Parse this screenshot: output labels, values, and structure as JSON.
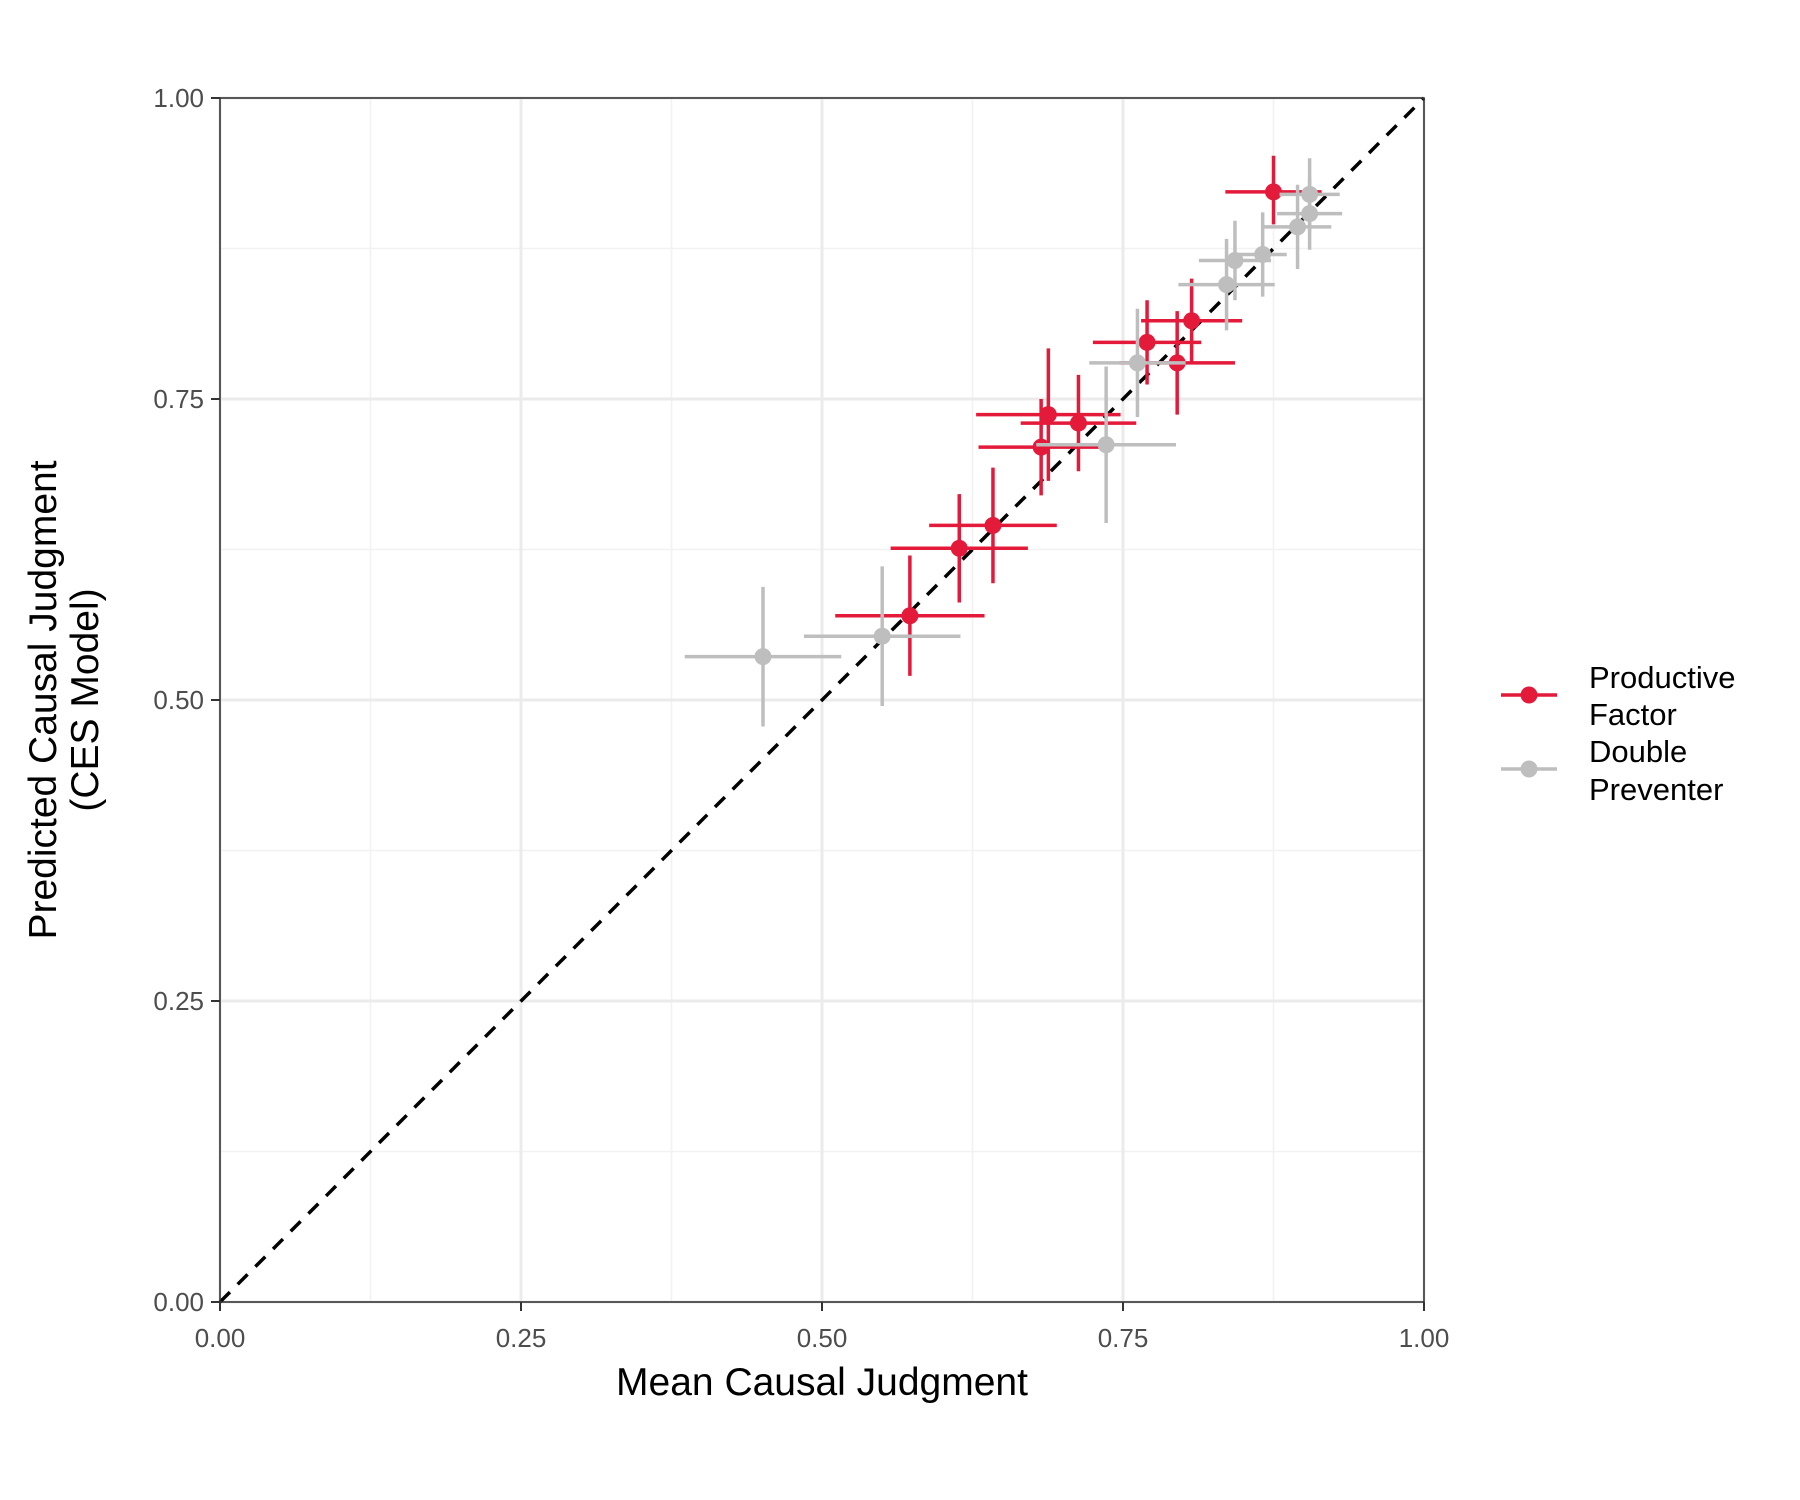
{
  "chart_data": {
    "type": "scatter",
    "title": "",
    "xlabel": "Mean Causal Judgment",
    "ylabel_lines": [
      "Predicted Causal Judgment",
      "(CES Model)"
    ],
    "xlim": [
      0,
      1
    ],
    "ylim": [
      0,
      1
    ],
    "x_ticks": [
      "0.00",
      "0.25",
      "0.50",
      "0.75",
      "1.00"
    ],
    "y_ticks": [
      "0.00",
      "0.25",
      "0.50",
      "0.75",
      "1.00"
    ],
    "grid": true,
    "reference_line": "y = x (dashed)",
    "legend_position": "right",
    "series": [
      {
        "name": "Productive Factor",
        "legend_lines": [
          "Productive",
          "Factor"
        ],
        "color": "#E41A3A",
        "points": [
          {
            "x": 0.875,
            "y": 0.922,
            "xerr": [
              0.04,
              0.04
            ],
            "yerr": [
              0.027,
              0.03
            ]
          },
          {
            "x": 0.807,
            "y": 0.815,
            "xerr": [
              0.042,
              0.042
            ],
            "yerr": [
              0.035,
              0.035
            ]
          },
          {
            "x": 0.77,
            "y": 0.797,
            "xerr": [
              0.045,
              0.045
            ],
            "yerr": [
              0.035,
              0.035
            ]
          },
          {
            "x": 0.795,
            "y": 0.78,
            "xerr": [
              0.048,
              0.048
            ],
            "yerr": [
              0.043,
              0.043
            ]
          },
          {
            "x": 0.688,
            "y": 0.737,
            "xerr": [
              0.06,
              0.06
            ],
            "yerr": [
              0.055,
              0.055
            ]
          },
          {
            "x": 0.713,
            "y": 0.73,
            "xerr": [
              0.048,
              0.048
            ],
            "yerr": [
              0.04,
              0.04
            ]
          },
          {
            "x": 0.682,
            "y": 0.71,
            "xerr": [
              0.052,
              0.052
            ],
            "yerr": [
              0.04,
              0.04
            ]
          },
          {
            "x": 0.642,
            "y": 0.645,
            "xerr": [
              0.053,
              0.053
            ],
            "yerr": [
              0.048,
              0.048
            ]
          },
          {
            "x": 0.614,
            "y": 0.626,
            "xerr": [
              0.057,
              0.057
            ],
            "yerr": [
              0.045,
              0.045
            ]
          },
          {
            "x": 0.573,
            "y": 0.57,
            "xerr": [
              0.062,
              0.062
            ],
            "yerr": [
              0.05,
              0.05
            ]
          }
        ]
      },
      {
        "name": "Double Preventer",
        "legend_lines": [
          "Double",
          "Preventer"
        ],
        "color": "#BEBEBE",
        "points": [
          {
            "x": 0.905,
            "y": 0.92,
            "xerr": [
              0.025,
              0.025
            ],
            "yerr": [
              0.03,
              0.03
            ]
          },
          {
            "x": 0.905,
            "y": 0.904,
            "xerr": [
              0.027,
              0.027
            ],
            "yerr": [
              0.03,
              0.03
            ]
          },
          {
            "x": 0.895,
            "y": 0.893,
            "xerr": [
              0.028,
              0.028
            ],
            "yerr": [
              0.035,
              0.035
            ]
          },
          {
            "x": 0.866,
            "y": 0.87,
            "xerr": [
              0.02,
              0.02
            ],
            "yerr": [
              0.035,
              0.035
            ]
          },
          {
            "x": 0.843,
            "y": 0.865,
            "xerr": [
              0.03,
              0.03
            ],
            "yerr": [
              0.033,
              0.033
            ]
          },
          {
            "x": 0.836,
            "y": 0.845,
            "xerr": [
              0.04,
              0.04
            ],
            "yerr": [
              0.038,
              0.038
            ]
          },
          {
            "x": 0.762,
            "y": 0.78,
            "xerr": [
              0.04,
              0.04
            ],
            "yerr": [
              0.045,
              0.045
            ]
          },
          {
            "x": 0.736,
            "y": 0.712,
            "xerr": [
              0.058,
              0.058
            ],
            "yerr": [
              0.065,
              0.065
            ]
          },
          {
            "x": 0.55,
            "y": 0.553,
            "xerr": [
              0.065,
              0.065
            ],
            "yerr": [
              0.058,
              0.058
            ]
          },
          {
            "x": 0.451,
            "y": 0.536,
            "xerr": [
              0.065,
              0.065
            ],
            "yerr": [
              0.058,
              0.058
            ]
          }
        ]
      }
    ]
  }
}
